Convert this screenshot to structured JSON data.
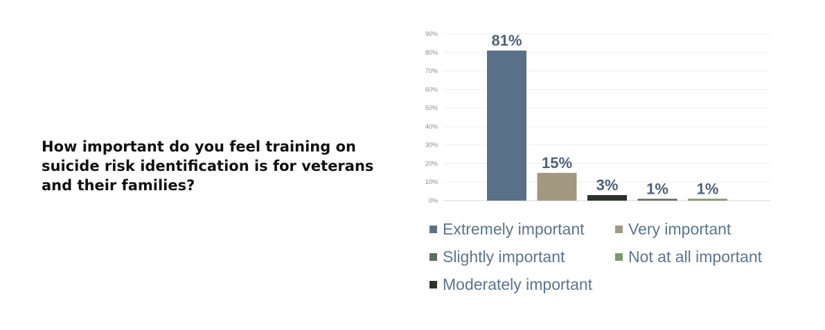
{
  "question": "How important do you feel training on suicide risk identification is for veterans and their families?",
  "chart_data": {
    "type": "bar",
    "categories": [
      "Extremely important",
      "Very important",
      "Moderately important",
      "Slightly important",
      "Not at all important"
    ],
    "values": [
      81,
      15,
      3,
      1,
      1
    ],
    "data_labels": [
      "81%",
      "15%",
      "3%",
      "1%",
      "1%"
    ],
    "colors": [
      "#587189",
      "#a39880",
      "#2b342a",
      "#5c6f5c",
      "#7d9a69"
    ],
    "yticks": [
      "0%",
      "10%",
      "20%",
      "30%",
      "40%",
      "50%",
      "60%",
      "70%",
      "80%",
      "90%"
    ],
    "ylim": [
      0,
      90
    ],
    "grid": true,
    "legend_position": "bottom"
  },
  "legend": [
    {
      "label": "Extremely important",
      "color": "#587189"
    },
    {
      "label": "Very important",
      "color": "#a39880"
    },
    {
      "label": "Slightly important",
      "color": "#5c6f5c"
    },
    {
      "label": "Not at all important",
      "color": "#7d9a69"
    },
    {
      "label": "Moderately important",
      "color": "#2b342a"
    }
  ]
}
